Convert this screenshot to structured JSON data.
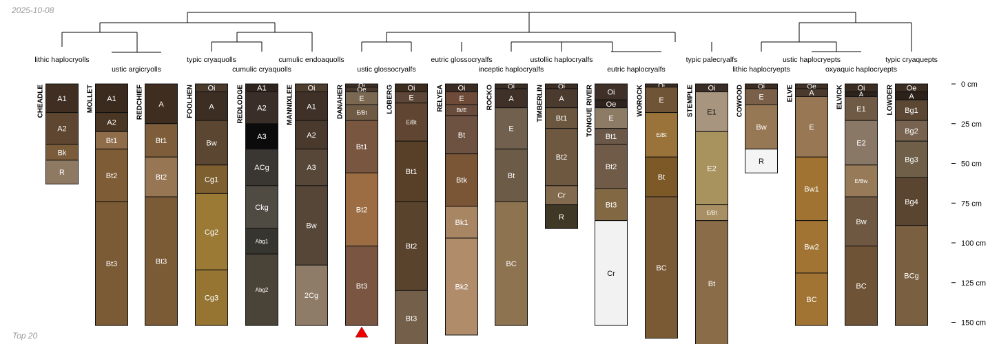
{
  "date": "2025-10-08",
  "caption": "Top 20",
  "depth_axis": {
    "unit": "cm",
    "ticks": [
      {
        "depth": 0,
        "label": "0 cm"
      },
      {
        "depth": 25,
        "label": "25 cm"
      },
      {
        "depth": 50,
        "label": "50 cm"
      },
      {
        "depth": 75,
        "label": "75 cm"
      },
      {
        "depth": 100,
        "label": "100 cm"
      },
      {
        "depth": 125,
        "label": "125 cm"
      },
      {
        "depth": 150,
        "label": "150 cm"
      }
    ]
  },
  "subgroups": [
    {
      "label": "lithic haplocryolls",
      "between": [
        0,
        0
      ],
      "row": 1
    },
    {
      "label": "ustic argicryolls",
      "between": [
        1,
        2
      ],
      "row": 2
    },
    {
      "label": "typic cryaquolls",
      "between": [
        3,
        3
      ],
      "row": 1
    },
    {
      "label": "cumulic cryaquolls",
      "between": [
        4,
        4
      ],
      "row": 2
    },
    {
      "label": "cumulic endoaquolls",
      "between": [
        5,
        5
      ],
      "row": 1
    },
    {
      "label": "ustic glossocryalfs",
      "between": [
        6,
        7
      ],
      "row": 2
    },
    {
      "label": "eutric glossocryalfs",
      "between": [
        8,
        8
      ],
      "row": 1
    },
    {
      "label": "inceptic haplocryalfs",
      "between": [
        9,
        9
      ],
      "row": 2
    },
    {
      "label": "ustollic haplocryalfs",
      "between": [
        10,
        10
      ],
      "row": 1
    },
    {
      "label": "eutric haplocryalfs",
      "between": [
        11,
        12
      ],
      "row": 2
    },
    {
      "label": "typic palecryalfs",
      "between": [
        13,
        13
      ],
      "row": 1
    },
    {
      "label": "lithic haplocryepts",
      "between": [
        14,
        14
      ],
      "row": 2
    },
    {
      "label": "ustic haplocryepts",
      "between": [
        15,
        15
      ],
      "row": 1
    },
    {
      "label": "oxyaquic haplocryepts",
      "between": [
        16,
        16
      ],
      "row": 2
    },
    {
      "label": "typic cryaquepts",
      "between": [
        17,
        17
      ],
      "row": 1
    }
  ],
  "profiles": [
    {
      "name": "CHEADLE",
      "horizons": [
        {
          "name": "A1",
          "top": 0,
          "bottom": 18,
          "color": "#3f2e21"
        },
        {
          "name": "A2",
          "top": 18,
          "bottom": 38,
          "color": "#5e4630"
        },
        {
          "name": "Bk",
          "top": 38,
          "bottom": 48,
          "color": "#7a5b3a"
        },
        {
          "name": "R",
          "top": 48,
          "bottom": 63,
          "color": "#8e7a62"
        }
      ]
    },
    {
      "name": "MOLLET",
      "horizons": [
        {
          "name": "A1",
          "top": 0,
          "bottom": 18,
          "color": "#3b2b1f"
        },
        {
          "name": "A2",
          "top": 18,
          "bottom": 30,
          "color": "#4a3624"
        },
        {
          "name": "Bt1",
          "top": 30,
          "bottom": 41,
          "color": "#8f6d4a"
        },
        {
          "name": "Bt2",
          "top": 41,
          "bottom": 74,
          "color": "#7d5c36"
        },
        {
          "name": "Bt3",
          "top": 74,
          "bottom": 152,
          "color": "#7b5a36"
        }
      ]
    },
    {
      "name": "REDCHIEF",
      "horizons": [
        {
          "name": "A",
          "top": 0,
          "bottom": 25,
          "color": "#3f2d20"
        },
        {
          "name": "Bt1",
          "top": 25,
          "bottom": 46,
          "color": "#7e5d3a"
        },
        {
          "name": "Bt2",
          "top": 46,
          "bottom": 71,
          "color": "#977654"
        },
        {
          "name": "Bt3",
          "top": 71,
          "bottom": 152,
          "color": "#7b5a36"
        }
      ]
    },
    {
      "name": "FOOLHEN",
      "horizons": [
        {
          "name": "Oi",
          "top": 0,
          "bottom": 5,
          "color": "#4a3a2c"
        },
        {
          "name": "A",
          "top": 5,
          "bottom": 23,
          "color": "#3c2e23"
        },
        {
          "name": "Bw",
          "top": 23,
          "bottom": 51,
          "color": "#5b4632"
        },
        {
          "name": "Cg1",
          "top": 51,
          "bottom": 69,
          "color": "#7d5f30"
        },
        {
          "name": "Cg2",
          "top": 69,
          "bottom": 117,
          "color": "#9a7a35"
        },
        {
          "name": "Cg3",
          "top": 117,
          "bottom": 152,
          "color": "#967533"
        }
      ]
    },
    {
      "name": "REDLODGE",
      "horizons": [
        {
          "name": "A1",
          "top": 0,
          "bottom": 5,
          "color": "#2e241d"
        },
        {
          "name": "A2",
          "top": 5,
          "bottom": 25,
          "color": "#3a2f28"
        },
        {
          "name": "A3",
          "top": 25,
          "bottom": 41,
          "color": "#0b0b0b"
        },
        {
          "name": "ACg",
          "top": 41,
          "bottom": 64,
          "color": "#3a3632"
        },
        {
          "name": "Ckg",
          "top": 64,
          "bottom": 91,
          "color": "#4f4a42"
        },
        {
          "name": "Abg1",
          "top": 91,
          "bottom": 107,
          "color": "#37352f"
        },
        {
          "name": "Abg2",
          "top": 107,
          "bottom": 152,
          "color": "#4a4338"
        }
      ]
    },
    {
      "name": "MANNIXLEE",
      "horizons": [
        {
          "name": "Oi",
          "top": 0,
          "bottom": 5,
          "color": "#4e3d2c"
        },
        {
          "name": "A1",
          "top": 5,
          "bottom": 23,
          "color": "#3f3128"
        },
        {
          "name": "A2",
          "top": 23,
          "bottom": 41,
          "color": "#4a3a2e"
        },
        {
          "name": "A3",
          "top": 41,
          "bottom": 64,
          "color": "#574739"
        },
        {
          "name": "Bw",
          "top": 64,
          "bottom": 114,
          "color": "#554638"
        },
        {
          "name": "2Cg",
          "top": 114,
          "bottom": 152,
          "color": "#8e7c68"
        }
      ]
    },
    {
      "name": "DANAHER",
      "horizons": [
        {
          "name": "Oi",
          "top": 0,
          "bottom": 2,
          "color": "#3e2f24"
        },
        {
          "name": "Oe",
          "top": 2,
          "bottom": 5,
          "color": "#47382b"
        },
        {
          "name": "E",
          "top": 5,
          "bottom": 13,
          "color": "#7a6852"
        },
        {
          "name": "E/Bt",
          "top": 13,
          "bottom": 23,
          "color": "#6f5a45"
        },
        {
          "name": "Bt1",
          "top": 23,
          "bottom": 56,
          "color": "#79563f"
        },
        {
          "name": "Bt2",
          "top": 56,
          "bottom": 102,
          "color": "#9c6d43"
        },
        {
          "name": "Bt3",
          "top": 102,
          "bottom": 152,
          "color": "#7a5541"
        }
      ]
    },
    {
      "name": "LOBERG",
      "horizons": [
        {
          "name": "Oi",
          "top": 0,
          "bottom": 5,
          "color": "#3c2c20"
        },
        {
          "name": "E",
          "top": 5,
          "bottom": 12,
          "color": "#5d4637"
        },
        {
          "name": "E/Bt",
          "top": 12,
          "bottom": 36,
          "color": "#604632"
        },
        {
          "name": "Bt1",
          "top": 36,
          "bottom": 74,
          "color": "#573f28"
        },
        {
          "name": "Bt2",
          "top": 74,
          "bottom": 130,
          "color": "#5a432c"
        },
        {
          "name": "Bt3",
          "top": 130,
          "bottom": 165,
          "color": "#74604a"
        }
      ]
    },
    {
      "name": "RELYEA",
      "horizons": [
        {
          "name": "Oi",
          "top": 0,
          "bottom": 5,
          "color": "#3a2c22"
        },
        {
          "name": "E",
          "top": 5,
          "bottom": 13,
          "color": "#6e4a38"
        },
        {
          "name": "Bt/E",
          "top": 13,
          "bottom": 20,
          "color": "#6a4c3c"
        },
        {
          "name": "Bt",
          "top": 20,
          "bottom": 44,
          "color": "#6d5242"
        },
        {
          "name": "Btk",
          "top": 44,
          "bottom": 77,
          "color": "#7a5637"
        },
        {
          "name": "Bk1",
          "top": 77,
          "bottom": 97,
          "color": "#a88664"
        },
        {
          "name": "Bk2",
          "top": 97,
          "bottom": 158,
          "color": "#b08c6b"
        }
      ]
    },
    {
      "name": "ROCKO",
      "horizons": [
        {
          "name": "Oi",
          "top": 0,
          "bottom": 3,
          "color": "#3a2d24"
        },
        {
          "name": "A",
          "top": 3,
          "bottom": 15,
          "color": "#3f3127"
        },
        {
          "name": "E",
          "top": 15,
          "bottom": 41,
          "color": "#70604d"
        },
        {
          "name": "Bt",
          "top": 41,
          "bottom": 74,
          "color": "#6c5b47"
        },
        {
          "name": "BC",
          "top": 74,
          "bottom": 152,
          "color": "#8e7351"
        }
      ]
    },
    {
      "name": "TIMBERLIN",
      "horizons": [
        {
          "name": "Oi",
          "top": 0,
          "bottom": 3,
          "color": "#3c2e23"
        },
        {
          "name": "A",
          "top": 3,
          "bottom": 15,
          "color": "#4b3b2e"
        },
        {
          "name": "Bt1",
          "top": 15,
          "bottom": 28,
          "color": "#6b5640"
        },
        {
          "name": "Bt2",
          "top": 28,
          "bottom": 64,
          "color": "#6e5840"
        },
        {
          "name": "Cr",
          "top": 64,
          "bottom": 76,
          "color": "#826a4e"
        },
        {
          "name": "R",
          "top": 76,
          "bottom": 91,
          "color": "#3f3826"
        }
      ]
    },
    {
      "name": "TONGUE RIVER",
      "horizons": [
        {
          "name": "Oi",
          "top": 0,
          "bottom": 10,
          "color": "#3f3128"
        },
        {
          "name": "Oe",
          "top": 10,
          "bottom": 15,
          "color": "#2e241d"
        },
        {
          "name": "E",
          "top": 15,
          "bottom": 28,
          "color": "#8c7c66"
        },
        {
          "name": "Bt1",
          "top": 28,
          "bottom": 38,
          "color": "#6b5848"
        },
        {
          "name": "Bt2",
          "top": 38,
          "bottom": 66,
          "color": "#6f5b48"
        },
        {
          "name": "Bt3",
          "top": 66,
          "bottom": 86,
          "color": "#826944"
        },
        {
          "name": "Cr",
          "top": 86,
          "bottom": 152,
          "color": "#f2f2f2"
        }
      ]
    },
    {
      "name": "WOROCK",
      "horizons": [
        {
          "name": "Oi",
          "top": 0,
          "bottom": 2,
          "color": "#3b2d22"
        },
        {
          "name": "E",
          "top": 2,
          "bottom": 18,
          "color": "#6f5435"
        },
        {
          "name": "E/Bt",
          "top": 18,
          "bottom": 46,
          "color": "#9a733a"
        },
        {
          "name": "Bt",
          "top": 46,
          "bottom": 71,
          "color": "#7d5927"
        },
        {
          "name": "BC",
          "top": 71,
          "bottom": 160,
          "color": "#7a5a35"
        }
      ]
    },
    {
      "name": "STEMPLE",
      "horizons": [
        {
          "name": "Oi",
          "top": 0,
          "bottom": 5,
          "color": "#3a2d25"
        },
        {
          "name": "E1",
          "top": 5,
          "bottom": 30,
          "color": "#a89580"
        },
        {
          "name": "E2",
          "top": 30,
          "bottom": 76,
          "color": "#a8925e"
        },
        {
          "name": "E/Bt",
          "top": 76,
          "bottom": 86,
          "color": "#a99064"
        },
        {
          "name": "Bt",
          "top": 86,
          "bottom": 165,
          "color": "#8a6c48"
        }
      ]
    },
    {
      "name": "COWOOD",
      "horizons": [
        {
          "name": "Oi",
          "top": 0,
          "bottom": 3,
          "color": "#3b2d22"
        },
        {
          "name": "E",
          "top": 3,
          "bottom": 13,
          "color": "#7a6048"
        },
        {
          "name": "Bw",
          "top": 13,
          "bottom": 41,
          "color": "#977854"
        },
        {
          "name": "R",
          "top": 41,
          "bottom": 56,
          "color": "#f4f4f4"
        }
      ]
    },
    {
      "name": "ELVE",
      "horizons": [
        {
          "name": "Oe",
          "top": 0,
          "bottom": 3,
          "color": "#3f3128"
        },
        {
          "name": "A",
          "top": 3,
          "bottom": 8,
          "color": "#4b3b2e"
        },
        {
          "name": "E",
          "top": 8,
          "bottom": 46,
          "color": "#977754"
        },
        {
          "name": "Bw1",
          "top": 46,
          "bottom": 86,
          "color": "#a07332"
        },
        {
          "name": "Bw2",
          "top": 86,
          "bottom": 119,
          "color": "#a27434"
        },
        {
          "name": "BC",
          "top": 119,
          "bottom": 152,
          "color": "#a27434"
        }
      ]
    },
    {
      "name": "ELVICK",
      "horizons": [
        {
          "name": "Oi",
          "top": 0,
          "bottom": 5,
          "color": "#3b2d22"
        },
        {
          "name": "A",
          "top": 5,
          "bottom": 8,
          "color": "#2c231c"
        },
        {
          "name": "E1",
          "top": 8,
          "bottom": 23,
          "color": "#6f5a45"
        },
        {
          "name": "E2",
          "top": 23,
          "bottom": 51,
          "color": "#8a7866"
        },
        {
          "name": "E/Bw",
          "top": 51,
          "bottom": 71,
          "color": "#977a58"
        },
        {
          "name": "Bw",
          "top": 71,
          "bottom": 102,
          "color": "#6e5842"
        },
        {
          "name": "BC",
          "top": 102,
          "bottom": 152,
          "color": "#6e5337"
        }
      ]
    },
    {
      "name": "LOWDER",
      "horizons": [
        {
          "name": "Oe",
          "top": 0,
          "bottom": 5,
          "color": "#3b2d22"
        },
        {
          "name": "A",
          "top": 5,
          "bottom": 10,
          "color": "#2c2219"
        },
        {
          "name": "Bg1",
          "top": 10,
          "bottom": 23,
          "color": "#5b4734"
        },
        {
          "name": "Bg2",
          "top": 23,
          "bottom": 36,
          "color": "#776350"
        },
        {
          "name": "Bg3",
          "top": 36,
          "bottom": 59,
          "color": "#6f5e48"
        },
        {
          "name": "Bg4",
          "top": 59,
          "bottom": 89,
          "color": "#5a4530"
        },
        {
          "name": "BCg",
          "top": 89,
          "bottom": 152,
          "color": "#7a5f40"
        }
      ]
    }
  ],
  "truncated_profiles": [
    "DANAHER"
  ],
  "marker_color": "#ee0000"
}
